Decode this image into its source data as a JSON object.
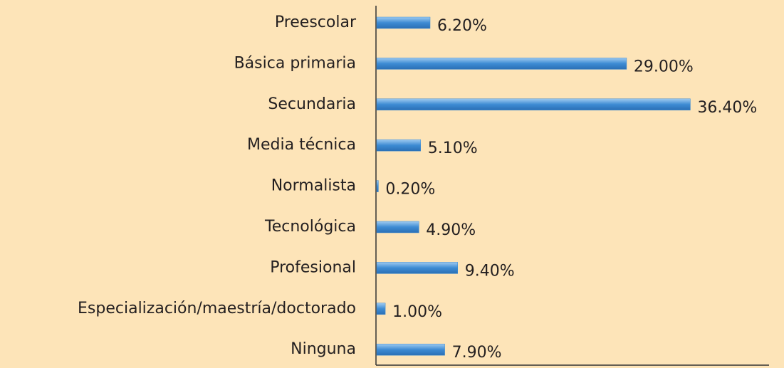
{
  "chart_data": {
    "type": "bar",
    "orientation": "horizontal",
    "categories": [
      "Preescolar",
      "Básica primaria",
      "Secundaria",
      "Media técnica",
      "Normalista",
      "Tecnológica",
      "Profesional",
      "Especialización/maestría/doctorado",
      "Ninguna"
    ],
    "values": [
      6.2,
      29.0,
      36.4,
      5.1,
      0.2,
      4.9,
      9.4,
      1.0,
      7.9
    ],
    "value_labels": [
      "6.20%",
      "29.00%",
      "36.40%",
      "5.10%",
      "0.20%",
      "4.90%",
      "9.40%",
      "1.00%",
      "7.90%"
    ],
    "color": "#3d8bd3"
  }
}
